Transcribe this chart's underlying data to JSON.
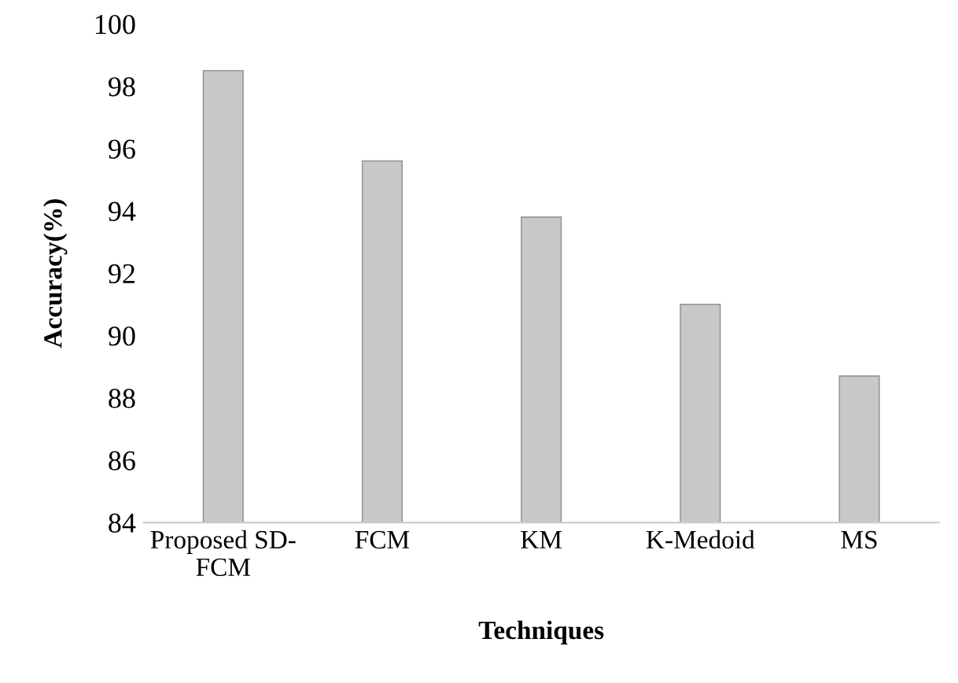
{
  "chart_data": {
    "type": "bar",
    "xlabel": "Techniques",
    "ylabel": "Accuracy(%)",
    "categories": [
      "Proposed SD-\nFCM",
      "FCM",
      "KM",
      "K-Medoid",
      "MS"
    ],
    "values": [
      98.5,
      95.6,
      93.8,
      91.0,
      88.7
    ],
    "color": "#c8c8c8",
    "ylim": [
      84,
      100
    ],
    "yticks": [
      84,
      86,
      88,
      90,
      92,
      94,
      96,
      98,
      100
    ],
    "grid": false
  }
}
